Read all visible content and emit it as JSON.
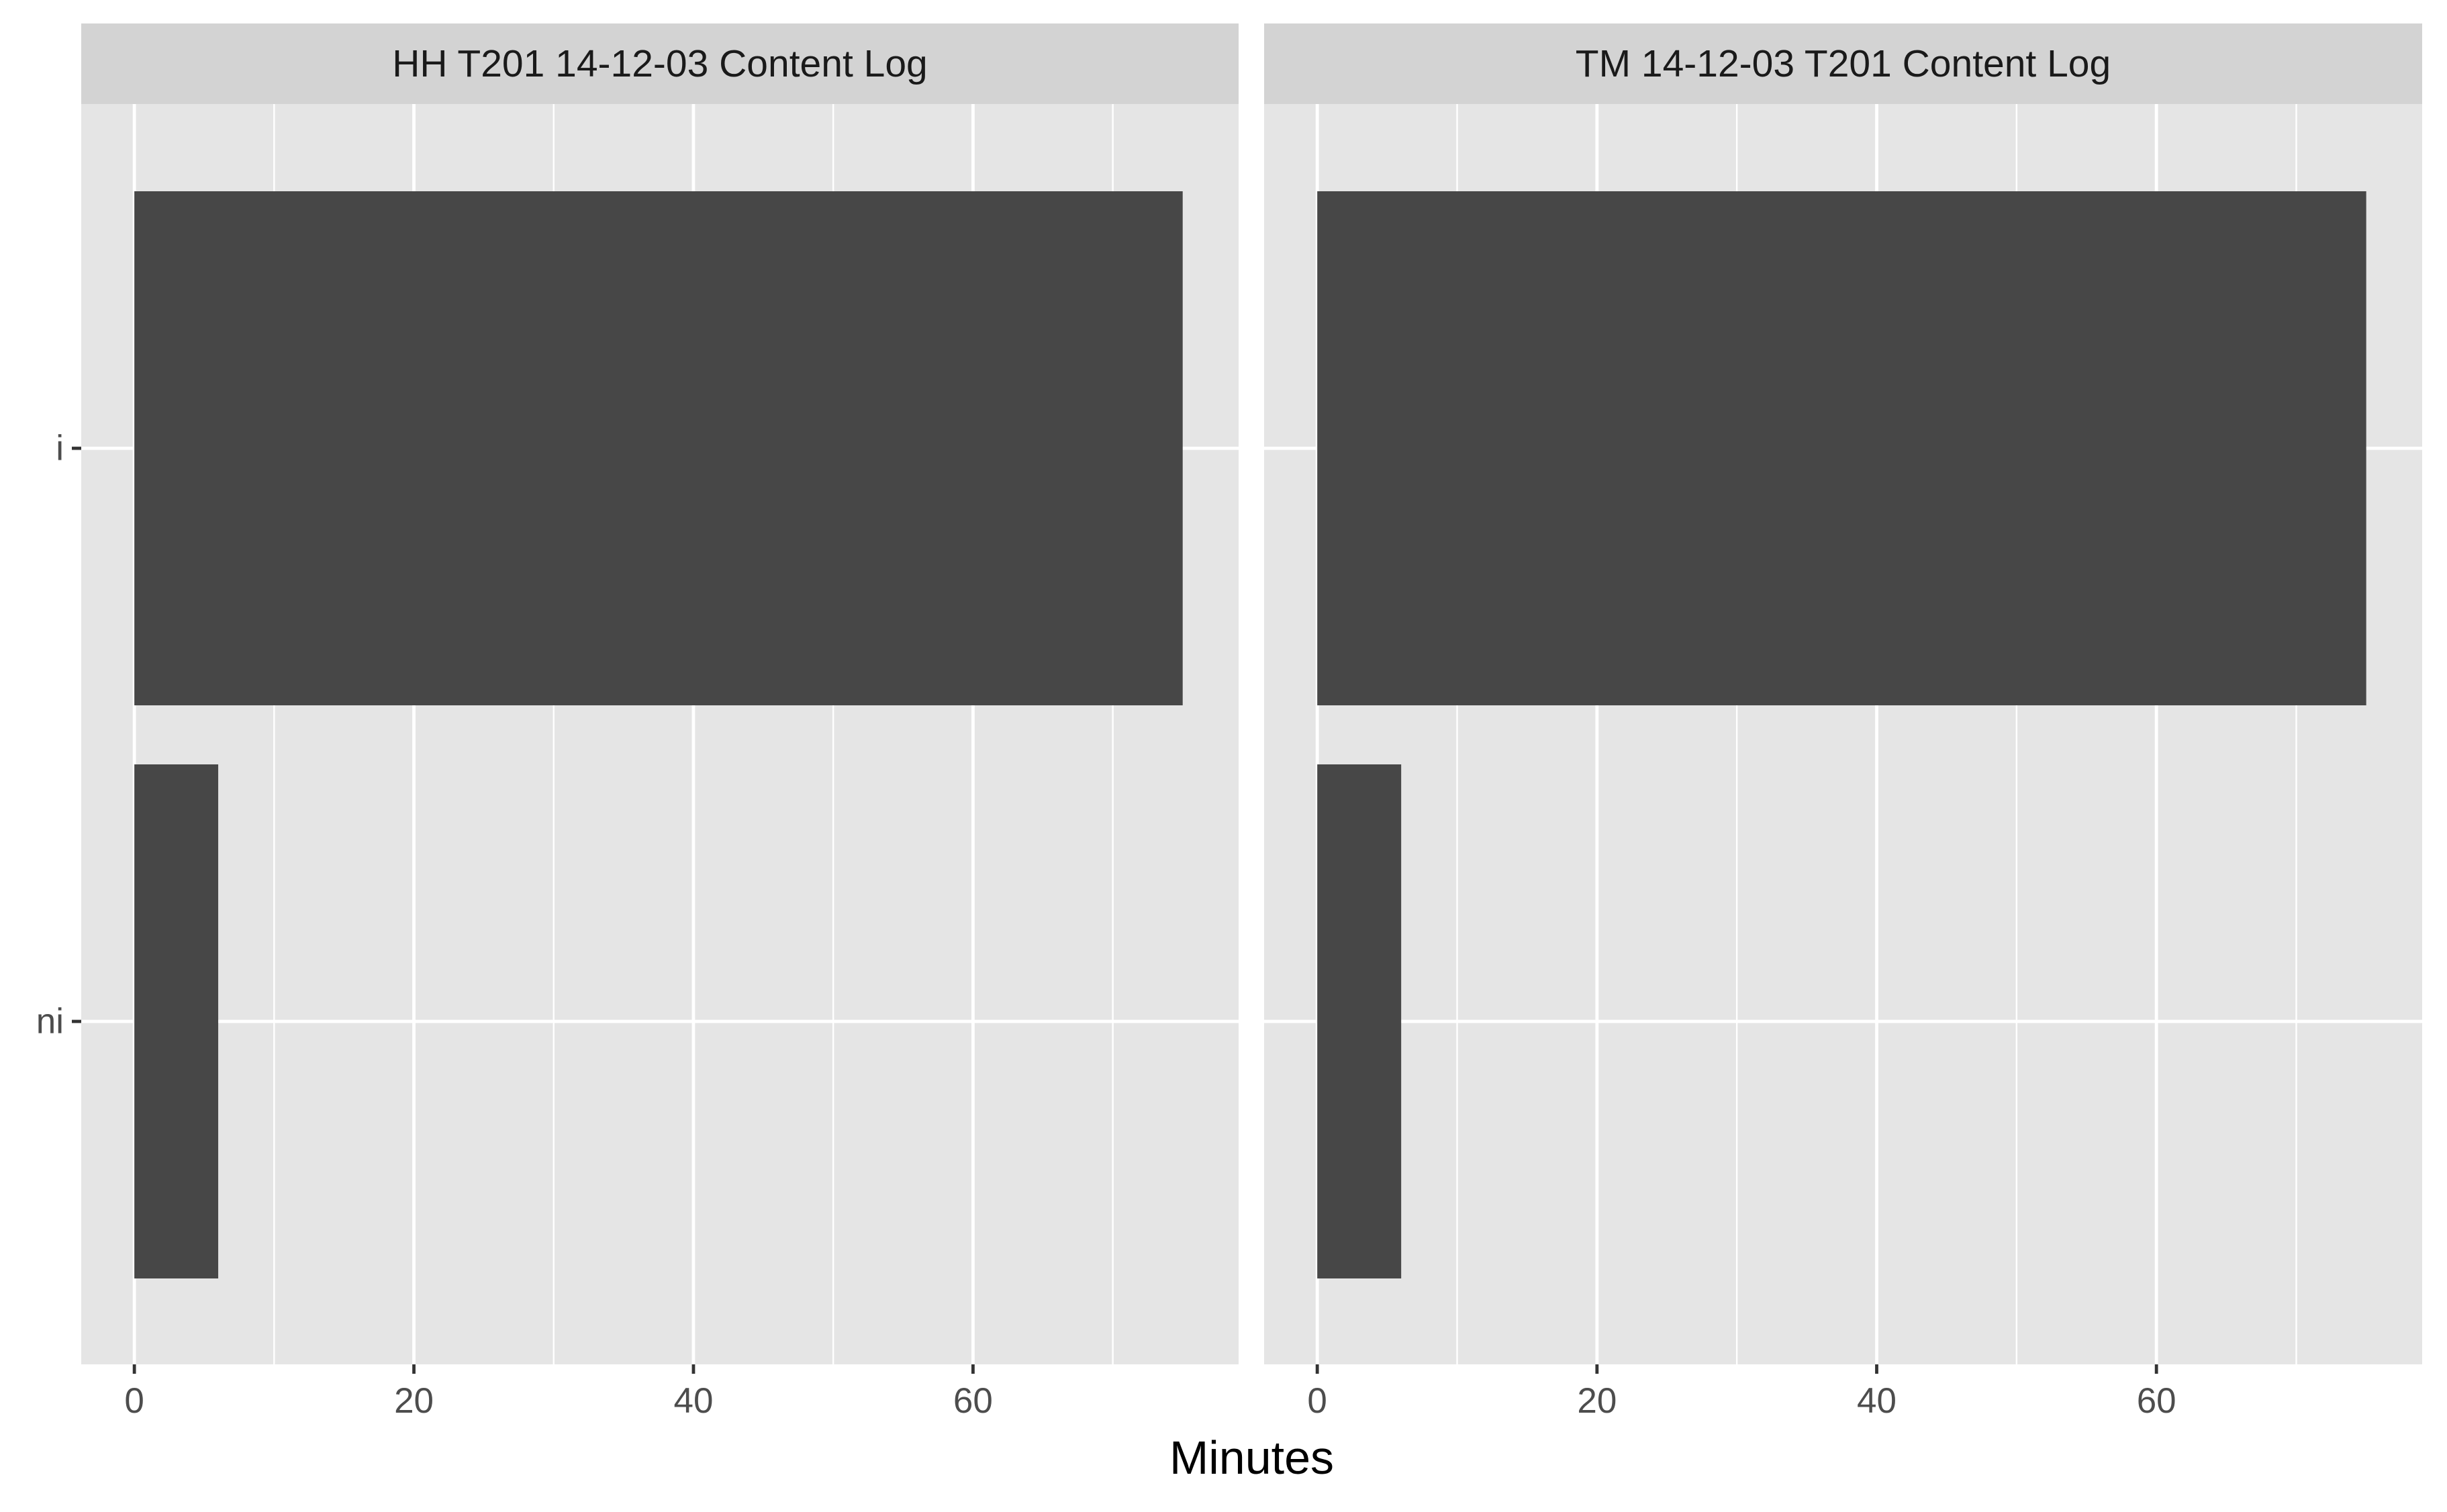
{
  "chart_data": {
    "type": "bar",
    "orientation": "horizontal",
    "xlabel": "Minutes",
    "ylabel": "",
    "categories": [
      "i",
      "ni"
    ],
    "xlim": [
      -3.8,
      79
    ],
    "x_ticks": [
      0,
      20,
      40,
      60
    ],
    "grid": true,
    "legend": "none",
    "bar_color": "#474747",
    "panel_background": "#e5e5e5",
    "strip_background": "#d3d3d3",
    "gridline_color": "#ffffff",
    "facets": [
      {
        "title": "HH T201 14-12-03 Content Log",
        "values": [
          75,
          6
        ]
      },
      {
        "title": "TM 14-12-03 T201 Content Log",
        "values": [
          75,
          6
        ]
      }
    ]
  }
}
